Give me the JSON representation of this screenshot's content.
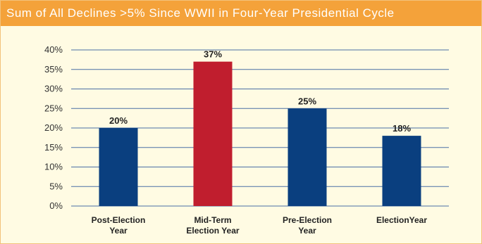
{
  "chart_data": {
    "type": "bar",
    "title": "Sum of All Declines >5% Since WWII in Four-Year Presidential Cycle",
    "categories": [
      [
        "Post-Election",
        "Year"
      ],
      [
        "Mid-Term",
        "Election Year"
      ],
      [
        "Pre-Election",
        "Year"
      ],
      [
        "ElectionYear"
      ]
    ],
    "values": [
      20,
      37,
      25,
      18
    ],
    "data_labels": [
      "20%",
      "37%",
      "25%",
      "18%"
    ],
    "bar_colors": [
      "#0a3f7f",
      "#c01e2e",
      "#0a3f7f",
      "#0a3f7f"
    ],
    "ylim": [
      0,
      40
    ],
    "yticks": [
      0,
      5,
      10,
      15,
      20,
      25,
      30,
      35,
      40
    ],
    "ytick_labels": [
      "0%",
      "5%",
      "10%",
      "15%",
      "20%",
      "25%",
      "30%",
      "35%",
      "40%"
    ],
    "grid": true,
    "xlabel": "",
    "ylabel": ""
  },
  "colors": {
    "title_bar": "#f4a23a",
    "background": "#fffbe3",
    "gridline": "#4a6fa5"
  }
}
